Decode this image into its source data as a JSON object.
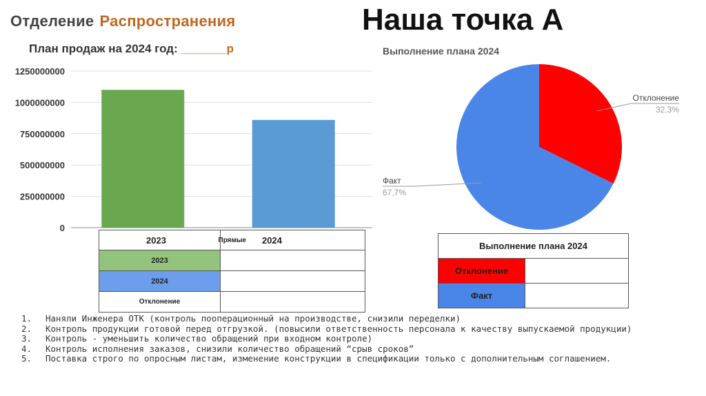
{
  "header": {
    "department_label": "Отделение",
    "department_name": "Распространения",
    "title": "Наша точка А",
    "plan_label": "План продаж на 2024 год:",
    "plan_value": "_______р"
  },
  "chart_data": [
    {
      "type": "bar",
      "categories": [
        "2023",
        "2024"
      ],
      "values": [
        1100000000,
        860000000
      ],
      "colors": [
        "#6aa84f",
        "#5b9bd5"
      ],
      "yticks": [
        "1250000000",
        "1000000000",
        "750000000",
        "500000000",
        "250000000",
        "0"
      ],
      "ylim": [
        0,
        1250000000
      ],
      "grid": true,
      "xlabel": "",
      "ylabel": ""
    },
    {
      "type": "pie",
      "title": "Выполнение плана 2024",
      "slices": [
        {
          "label": "Отклонение",
          "value": 32.3,
          "display": "32,3%",
          "color": "#ff0000"
        },
        {
          "label": "Факт",
          "value": 67.7,
          "display": "67,7%",
          "color": "#4a86e8"
        }
      ]
    }
  ],
  "bar_table": {
    "header": [
      "2023",
      "Прямые",
      "2024"
    ],
    "rows": [
      {
        "label": "2023",
        "value": ""
      },
      {
        "label": "2024",
        "value": ""
      },
      {
        "label": "Отклонение",
        "value": ""
      }
    ]
  },
  "pie_table": {
    "title": "Выполнение плана 2024",
    "rows": [
      {
        "label": "Отклонение",
        "value": ""
      },
      {
        "label": "Факт",
        "value": ""
      }
    ]
  },
  "notes": [
    {
      "num": "1.",
      "text": "Наняли Инженера ОТК (контроль пооперационный на производстве, снизили переделки)"
    },
    {
      "num": "2.",
      "text": "Контроль продукции готовой перед отгрузкой. (повысили ответственность персонала к качеству выпускаемой продукции)"
    },
    {
      "num": "3.",
      "text": "Контроль -  уменьшить количество обращений при входном контроле)"
    },
    {
      "num": "4.",
      "text": "Контроль исполнения заказов, снизили количество обращений “срыв сроков”"
    },
    {
      "num": "5.",
      "text": "Поставка строго по опросным листам, изменение конструкции в спецификации только с дополнительным соглашением."
    }
  ]
}
